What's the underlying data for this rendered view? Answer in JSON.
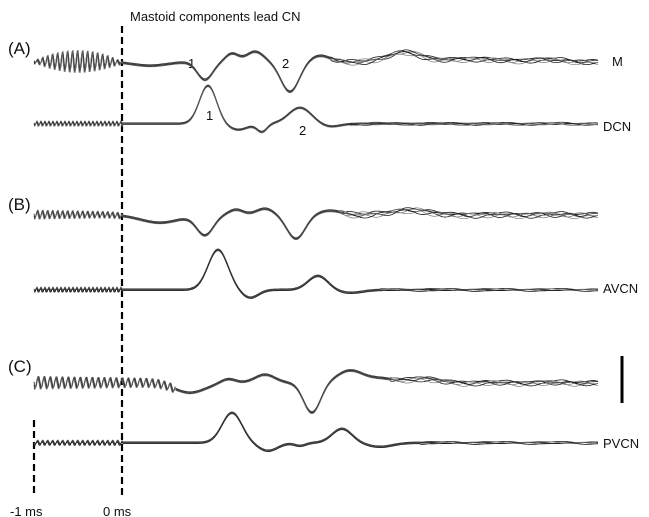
{
  "figure": {
    "title": "Mastoid components lead CN",
    "time_labels": {
      "minus_one": "-1 ms",
      "zero": "0 ms"
    },
    "panels": [
      {
        "label": "(A)",
        "top_trace": "M",
        "bottom_trace": "DCN",
        "top_peaks": [
          "1",
          "2"
        ],
        "bottom_peaks": [
          "1",
          "2"
        ]
      },
      {
        "label": "(B)",
        "top_trace": "",
        "bottom_trace": "AVCN",
        "top_peaks": [],
        "bottom_peaks": []
      },
      {
        "label": "(C)",
        "top_trace": "",
        "bottom_trace": "PVCN",
        "top_peaks": [],
        "bottom_peaks": []
      }
    ],
    "colors": {
      "trace": "#1a1a1a",
      "dashed_line": "#000000"
    }
  }
}
